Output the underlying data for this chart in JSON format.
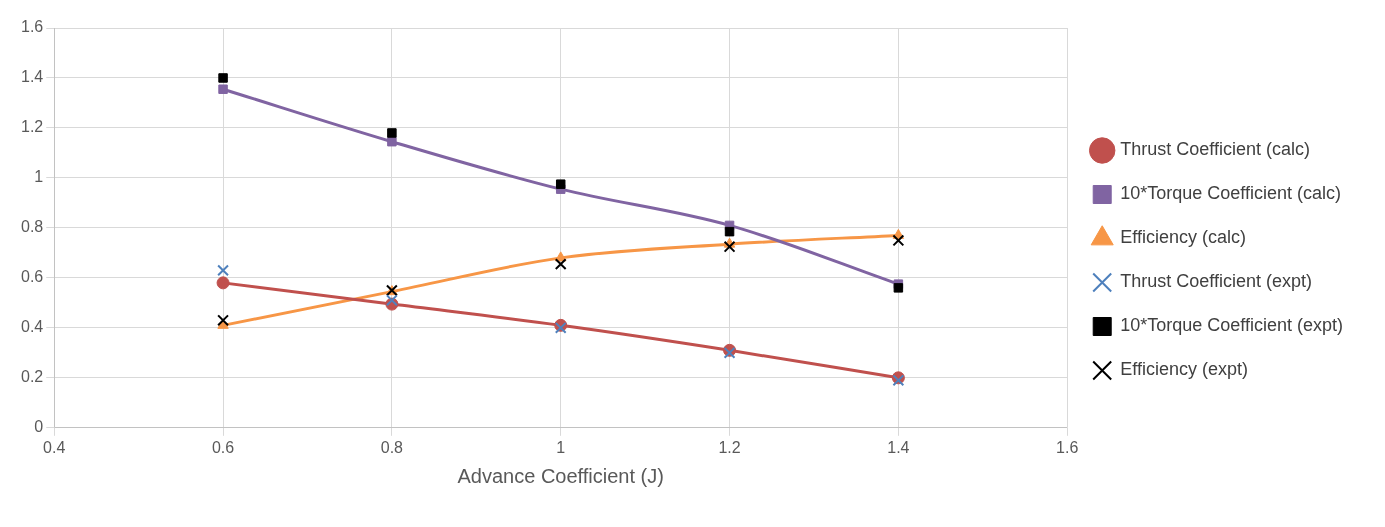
{
  "chart_data": {
    "type": "line",
    "xlabel": "Advance Coefficient (J)",
    "x": [
      0.6,
      0.8,
      1,
      1.2,
      1.4
    ],
    "xlim": [
      0.4,
      1.6
    ],
    "xticks": [
      0.4,
      0.6,
      0.8,
      1,
      1.2,
      1.4,
      1.6
    ],
    "ylim": [
      0,
      1.6
    ],
    "yticks": [
      0,
      0.2,
      0.4,
      0.6,
      0.8,
      1,
      1.2,
      1.4,
      1.6
    ],
    "grid": true,
    "legend": "right",
    "series": [
      {
        "name": "Thrust Coefficient (calc)",
        "type": "line",
        "marker": "circle",
        "color": "#c0504d",
        "values": [
          0.58,
          0.495,
          0.41,
          0.31,
          0.2
        ]
      },
      {
        "name": "10*Torque Coefficient (calc)",
        "type": "line",
        "marker": "square",
        "color": "#8064a2",
        "values": [
          1.355,
          1.145,
          0.955,
          0.81,
          0.575
        ]
      },
      {
        "name": "Efficiency (calc)",
        "type": "line",
        "marker": "triangle",
        "color": "#f79646",
        "values": [
          0.41,
          0.545,
          0.68,
          0.735,
          0.77
        ]
      },
      {
        "name": "Thrust Coefficient (expt)",
        "type": "scatter",
        "marker": "cross",
        "color": "#4f81bd",
        "values": [
          0.63,
          0.51,
          0.4,
          0.3,
          0.19
        ]
      },
      {
        "name": "10*Torque Coefficient (expt)",
        "type": "scatter",
        "marker": "square",
        "color": "#000000",
        "values": [
          1.4,
          1.18,
          0.975,
          0.785,
          0.56
        ]
      },
      {
        "name": "Efficiency (expt)",
        "type": "scatter",
        "marker": "cross",
        "color": "#000000",
        "values": [
          0.43,
          0.55,
          0.655,
          0.725,
          0.75
        ]
      }
    ]
  }
}
